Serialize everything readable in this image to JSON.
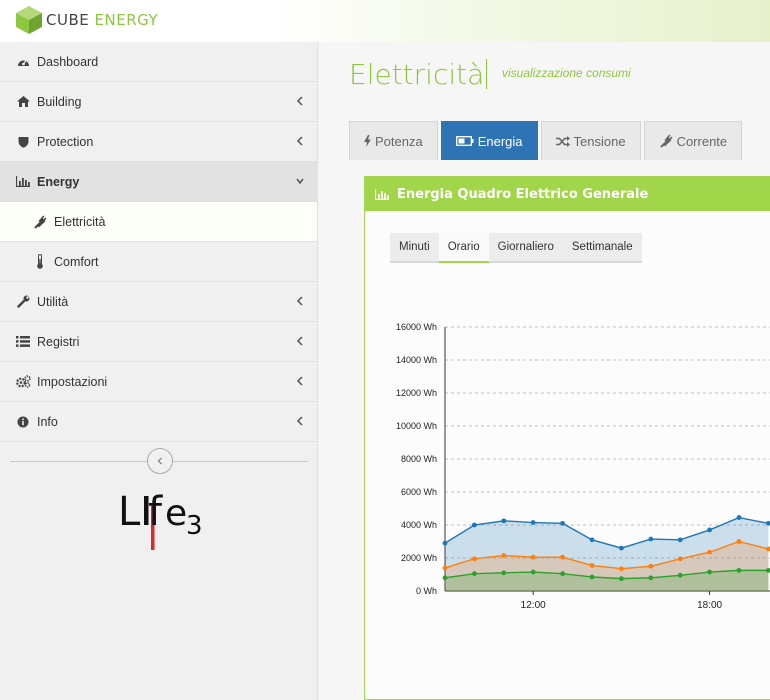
{
  "brand": {
    "name_part1": "CUBE",
    "name_part2": "ENERGY"
  },
  "sidebar": {
    "items": [
      {
        "label": "Dashboard",
        "icon": "dashboard-icon"
      },
      {
        "label": "Building",
        "icon": "home-icon"
      },
      {
        "label": "Protection",
        "icon": "shield-icon"
      },
      {
        "label": "Energy",
        "icon": "bar-chart-icon",
        "open": true
      },
      {
        "label": "Elettricità",
        "icon": "plug-icon",
        "active": true
      },
      {
        "label": "Comfort",
        "icon": "thermometer-icon"
      },
      {
        "label": "Utilità",
        "icon": "wrench-icon"
      },
      {
        "label": "Registri",
        "icon": "list-icon"
      },
      {
        "label": "Impostazioni",
        "icon": "cogs-icon"
      },
      {
        "label": "Info",
        "icon": "info-icon"
      }
    ],
    "logo_text": "Life3"
  },
  "page": {
    "title": "Elettricità",
    "subtitle": "visualizzazione consumi"
  },
  "tabs": [
    {
      "label": "Potenza",
      "icon": "bolt-icon"
    },
    {
      "label": "Energia",
      "icon": "battery-icon",
      "active": true
    },
    {
      "label": "Tensione",
      "icon": "shuffle-icon"
    },
    {
      "label": "Corrente",
      "icon": "plug-icon"
    }
  ],
  "panel": {
    "title": "Energia Quadro Elettrico Generale",
    "subtabs": [
      "Minuti",
      "Orario",
      "Giornaliero",
      "Settimanale"
    ],
    "active_subtab": "Orario"
  },
  "colors": {
    "accent": "#8dc63f",
    "header": "#a1d64b",
    "active_tab": "#2e74b5",
    "series_blue": "#1f77b4",
    "series_orange": "#ff7f0e",
    "series_green": "#2ca02c"
  },
  "chart_data": {
    "type": "area",
    "x": [
      "09:00",
      "10:00",
      "11:00",
      "12:00",
      "13:00",
      "14:00",
      "15:00",
      "16:00",
      "17:00",
      "18:00",
      "19:00",
      "20:00"
    ],
    "series": [
      {
        "values": [
          2900,
          4000,
          4250,
          4150,
          4100,
          3100,
          2600,
          3150,
          3100,
          3700,
          4450,
          4100
        ]
      },
      {
        "values": [
          1400,
          1950,
          2150,
          2050,
          2050,
          1550,
          1350,
          1500,
          1950,
          2350,
          3000,
          2550
        ]
      },
      {
        "values": [
          800,
          1050,
          1100,
          1150,
          1050,
          850,
          750,
          800,
          950,
          1150,
          1250,
          1250
        ]
      }
    ],
    "yticks": [
      "0 Wh",
      "2000 Wh",
      "4000 Wh",
      "6000 Wh",
      "8000 Wh",
      "10000 Wh",
      "12000 Wh",
      "14000 Wh",
      "16000 Wh"
    ],
    "xticks": [
      "12:00",
      "18:00"
    ],
    "ylim": [
      0,
      16000
    ],
    "grid": true
  }
}
